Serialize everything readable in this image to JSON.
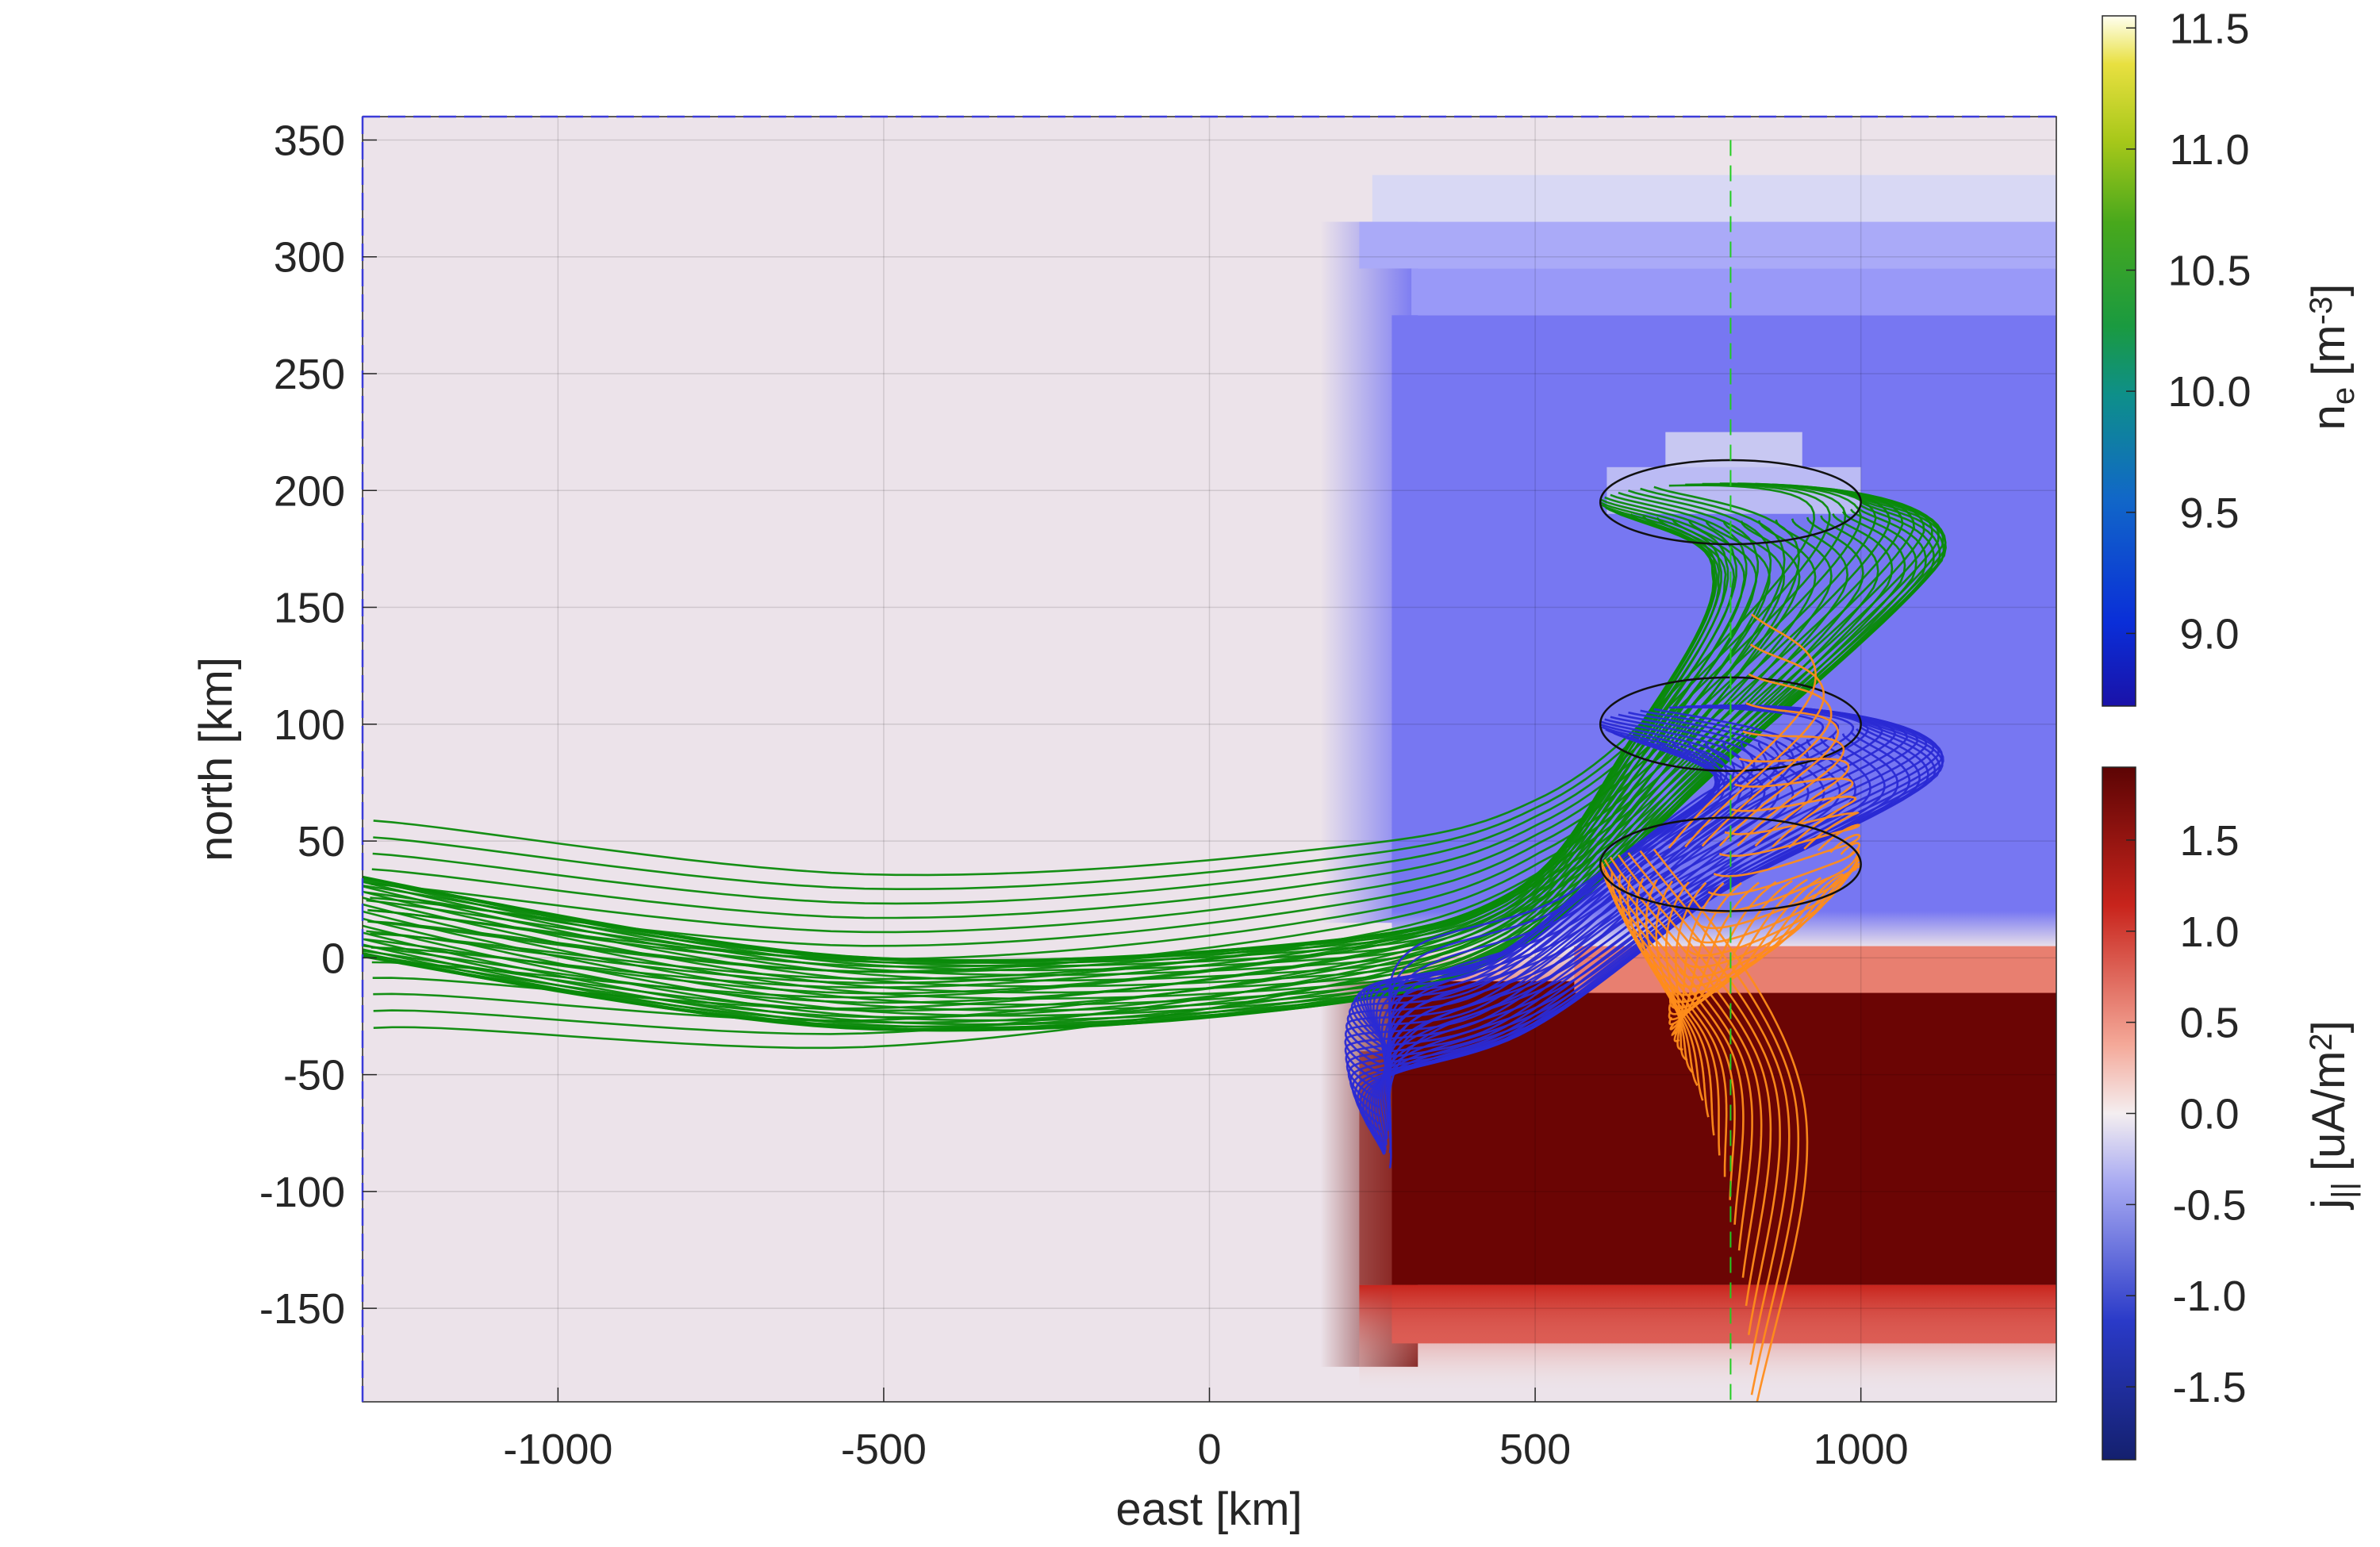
{
  "chart_data": {
    "type": "heatmap",
    "xlabel": "east [km]",
    "ylabel": "north [km]",
    "xlim": [
      -1300,
      1300
    ],
    "ylim": [
      -190,
      360
    ],
    "xticks": [
      -1000,
      -500,
      0,
      500,
      1000
    ],
    "xtick_labels": [
      "-1000",
      "-500",
      "0",
      "500",
      "1000"
    ],
    "yticks": [
      -150,
      -100,
      -50,
      0,
      50,
      100,
      150,
      200,
      250,
      300,
      350
    ],
    "ytick_labels": [
      "-150",
      "-100",
      "-50",
      "0",
      "50",
      "100",
      "150",
      "200",
      "250",
      "300",
      "350"
    ],
    "grid": true,
    "reference_line": {
      "axis": "x",
      "value": 800,
      "style": "dashed",
      "color": "#22cc22"
    },
    "colorbars": [
      {
        "label_main": "n",
        "label_sub": "e",
        "label_unit_open": "[m",
        "label_sup": "-3",
        "label_unit_close": "]",
        "colormap": "parula-like",
        "lim": [
          8.7,
          11.55
        ],
        "ticks": [
          9.0,
          9.5,
          10.0,
          10.5,
          11.0,
          11.5
        ],
        "tick_labels": [
          "9.0",
          "9.5",
          "10.0",
          "10.5",
          "11.0",
          "11.5"
        ]
      },
      {
        "label_main": "j",
        "label_sub": "||",
        "label_unit_open": "[uA/m",
        "label_sup": "2",
        "label_unit_close": "]",
        "colormap": "blue-white-red",
        "lim": [
          -1.9,
          1.9
        ],
        "ticks": [
          -1.5,
          -1.0,
          -0.5,
          0.0,
          0.5,
          1.0,
          1.5
        ],
        "tick_labels": [
          "-1.5",
          "-1.0",
          "-0.5",
          "0.0",
          "0.5",
          "1.0",
          "1.5"
        ]
      }
    ],
    "density_regions": [
      {
        "x": [
          310,
          1300
        ],
        "y": [
          275,
          295
        ],
        "value": 9.85,
        "color": "#9999f8"
      },
      {
        "x": [
          230,
          1300
        ],
        "y": [
          295,
          315
        ],
        "value": 9.9,
        "color": "#aaaaf8"
      },
      {
        "x": [
          250,
          1300
        ],
        "y": [
          315,
          335
        ],
        "value": 10.1,
        "color": "#d8d8f4"
      },
      {
        "x": [
          280,
          1300
        ],
        "y": [
          15,
          275
        ],
        "value": 9.8,
        "color": "#7777f2"
      },
      {
        "x": [
          700,
          910
        ],
        "y": [
          205,
          225
        ],
        "value": 10.2,
        "color": "#c8c8f2"
      },
      {
        "x": [
          610,
          1000
        ],
        "y": [
          190,
          210
        ],
        "value": 10.1,
        "color": "#bbbbf4"
      }
    ],
    "current_regions": [
      {
        "x": [
          280,
          1300
        ],
        "y": [
          -140,
          -10
        ],
        "value": 1.9,
        "color": "#6b0504"
      },
      {
        "x": [
          560,
          1300
        ],
        "y": [
          -15,
          5
        ],
        "value": 0.8,
        "color": "#e87f70"
      },
      {
        "x": [
          280,
          1300
        ],
        "y": [
          -165,
          -140
        ],
        "value": 1.2,
        "color": "#d83a30"
      }
    ],
    "series": [
      {
        "color": "#0a8a0a",
        "start": {
          "center": [
            -1300,
            18
          ],
          "half_width": 48
        },
        "waypoints": [
          [
            -1300,
            18
          ],
          [
            -550,
            -10
          ],
          [
            150,
            0
          ],
          [
            480,
            25
          ],
          [
            720,
            90
          ],
          [
            950,
            170
          ],
          [
            800,
            195
          ]
        ],
        "end_ellipse": {
          "center": [
            800,
            195
          ],
          "rx": 200,
          "ry": 18
        },
        "fan_width": [
          48,
          45,
          25,
          40,
          120,
          200,
          200
        ]
      },
      {
        "color": "#2a2ad4",
        "start": {
          "center": [
            270,
            -50
          ],
          "half_width": 30
        },
        "waypoints": [
          [
            270,
            -60
          ],
          [
            260,
            -30
          ],
          [
            480,
            -10
          ],
          [
            720,
            40
          ],
          [
            950,
            80
          ],
          [
            800,
            100
          ]
        ],
        "end_ellipse": {
          "center": [
            800,
            100
          ],
          "rx": 200,
          "ry": 20
        },
        "fan_width": [
          20,
          100,
          120,
          140,
          200,
          200
        ]
      },
      {
        "color": "#ff8c1a",
        "start": {
          "center": [
            770,
            -20
          ],
          "half_width": 180
        },
        "waypoints": [
          [
            770,
            -20
          ],
          [
            850,
            10
          ],
          [
            800,
            40
          ]
        ],
        "end_ellipse": {
          "center": [
            800,
            40
          ],
          "rx": 200,
          "ry": 20
        },
        "fan_width": [
          180,
          200,
          200
        ]
      }
    ]
  }
}
